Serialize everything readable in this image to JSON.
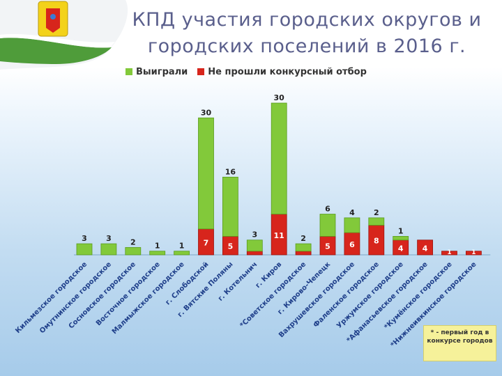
{
  "title_line1": "КПД участия городских округов и",
  "title_line2": "городских поселений в 2016 г.",
  "footnote": "* - первый год в конкурсе городов",
  "colors": {
    "won": "#82c93a",
    "won_dark": "#5a9c1e",
    "failed": "#d7251c",
    "failed_dark": "#9c1510"
  },
  "chart_data": {
    "type": "bar",
    "stacked": true,
    "legend_position": "top",
    "categories": [
      "Кильмезское городское",
      "Омутнинское городское",
      "Сосновское городское",
      "Восточное городское",
      "Малмыжское городское",
      "г. Слободской",
      "г. Вятские Поляны",
      "г. Котельнич",
      "г. Киров",
      "*Советское городское",
      "г. Кирово-Чепецк",
      "Вахрушевское городское",
      "Фаленское городское",
      "Уржумское городское",
      "*Афанасьевское городское",
      "*Кумёнское городское",
      "*Нижнеивкинское городское"
    ],
    "series": [
      {
        "name": "Не прошли конкурсный отбор",
        "values": [
          0,
          0,
          0,
          0,
          0,
          7,
          5,
          1,
          11,
          1,
          5,
          6,
          8,
          4,
          4,
          1,
          1
        ],
        "labels": [
          "",
          "",
          "",
          "",
          "",
          "7",
          "5",
          "",
          "11",
          "",
          "5",
          "6",
          "8",
          "4",
          "4",
          "1",
          "1"
        ]
      },
      {
        "name": "Выиграли",
        "values": [
          3,
          3,
          2,
          1,
          1,
          30,
          16,
          3,
          30,
          2,
          6,
          4,
          2,
          1,
          0,
          0,
          0
        ],
        "labels": [
          "3",
          "3",
          "2",
          "1",
          "1",
          "30",
          "16",
          "3",
          "30",
          "2",
          "6",
          "4",
          "2",
          "1",
          "",
          "",
          ""
        ]
      }
    ]
  }
}
